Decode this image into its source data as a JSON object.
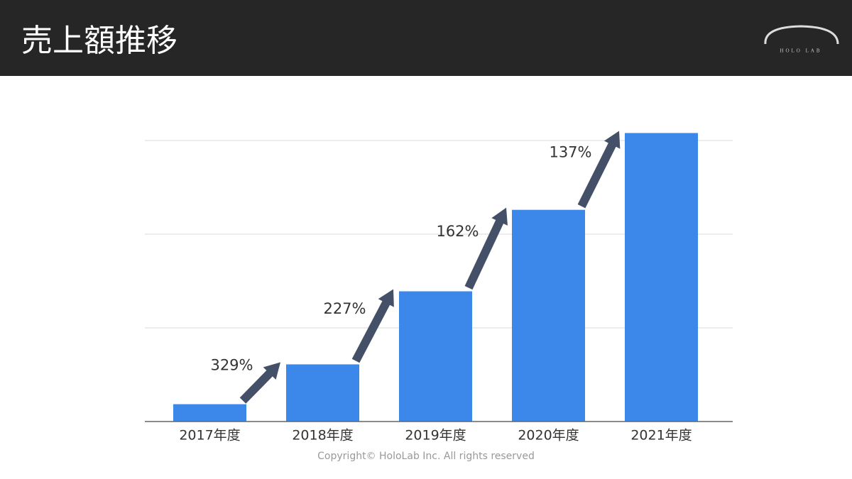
{
  "header": {
    "title": "売上額推移",
    "logo": "HOLO LAB"
  },
  "footer": {
    "copyright": "Copyright© HoloLab Inc. All rights reserved"
  },
  "chart_data": {
    "type": "bar",
    "categories": [
      "2017年度",
      "2018年度",
      "2019年度",
      "2020年度",
      "2021年度"
    ],
    "values": [
      0.185,
      0.61,
      1.39,
      2.26,
      3.08
    ],
    "color": "#3b87ea",
    "ylim": [
      0,
      3.2
    ],
    "yticks": [
      1,
      2,
      3
    ],
    "grid": true,
    "tick_labels": false,
    "growth_labels": [
      "329%",
      "227%",
      "162%",
      "137%"
    ],
    "arrow_color": "#435068"
  }
}
